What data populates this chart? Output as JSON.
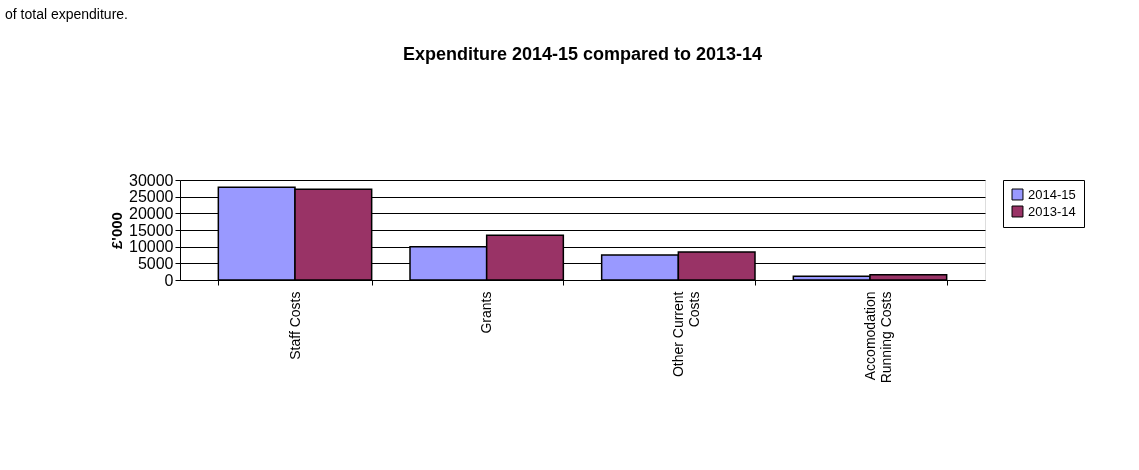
{
  "chart_data": {
    "type": "bar",
    "title": "Expenditure 2014-15 compared to 2013-14",
    "ylabel": "£'000",
    "categories": [
      "Staff Costs",
      "Grants",
      "Other Current Costs",
      "Accomodation Running Costs"
    ],
    "series": [
      {
        "name": "2014-15",
        "color": "#9999ff",
        "values": [
          27800,
          10000,
          7500,
          1100
        ]
      },
      {
        "name": "2013-14",
        "color": "#993366",
        "values": [
          27200,
          13400,
          8400,
          1600
        ]
      }
    ],
    "ylim": [
      0,
      30000
    ],
    "yticks": [
      0,
      5000,
      10000,
      15000,
      20000,
      25000,
      30000
    ],
    "grid": "y",
    "legend": "right",
    "annotations": [
      "of total expenditure."
    ]
  }
}
